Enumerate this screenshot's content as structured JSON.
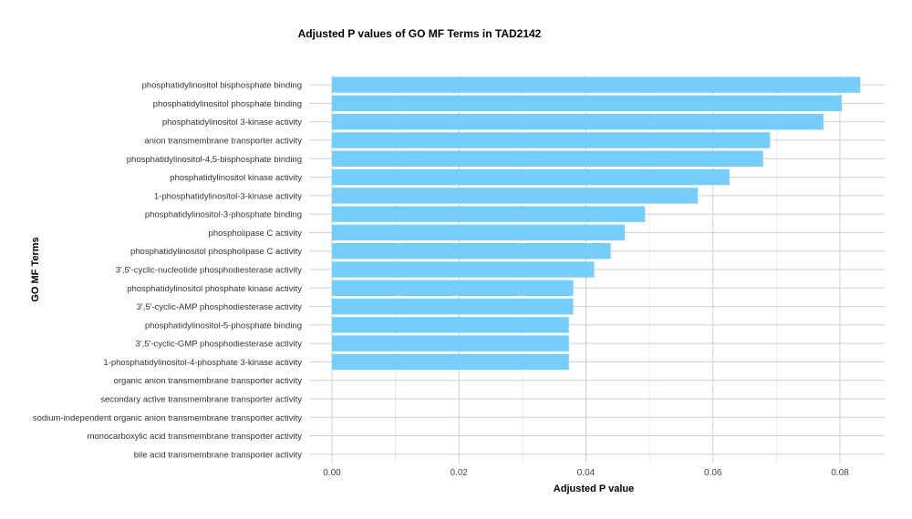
{
  "chart_data": {
    "type": "bar",
    "orientation": "horizontal",
    "title": "Adjusted P values of GO MF Terms in TAD2142",
    "xlabel": "Adjusted P value",
    "ylabel": "GO MF Terms",
    "xlim": [
      0,
      0.088
    ],
    "xticks": [
      "0.00",
      "0.02",
      "0.04",
      "0.06",
      "0.08"
    ],
    "xtick_values": [
      0,
      0.02,
      0.04,
      0.06,
      0.08
    ],
    "grid": true,
    "bar_color": "#74cdfb",
    "categories": [
      "phosphatidylinositol bisphosphate binding",
      "phosphatidylinositol phosphate binding",
      "phosphatidylinositol 3-kinase activity",
      "anion transmembrane transporter activity",
      "phosphatidylinositol-4,5-bisphosphate binding",
      "phosphatidylinositol kinase activity",
      "1-phosphatidylinositol-3-kinase activity",
      "phosphatidylinositol-3-phosphate binding",
      "phospholipase C activity",
      "phosphatidylinositol phospholipase C activity",
      "3',5'-cyclic-nucleotide phosphodiesterase activity",
      "phosphatidylinositol phosphate kinase activity",
      "3',5'-cyclic-AMP phosphodiesterase activity",
      "phosphatidylinositol-5-phosphate binding",
      "3',5'-cyclic-GMP phosphodiesterase activity",
      "1-phosphatidylinositol-4-phosphate 3-kinase activity",
      "organic anion transmembrane transporter activity",
      "secondary active transmembrane transporter activity",
      "sodium-independent organic anion transmembrane transporter activity",
      "monocarboxylic acid transmembrane transporter activity",
      "bile acid transmembrane transporter activity"
    ],
    "values": [
      0.0832,
      0.0803,
      0.0774,
      0.069,
      0.0679,
      0.0626,
      0.0576,
      0.0493,
      0.0461,
      0.0439,
      0.0413,
      0.038,
      0.038,
      0.0373,
      0.0373,
      0.0373,
      null,
      null,
      null,
      null,
      null
    ]
  }
}
